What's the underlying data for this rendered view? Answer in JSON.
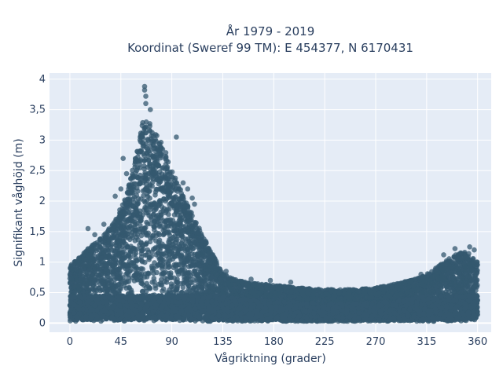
{
  "chart_data": {
    "type": "scatter",
    "title_line1": "År 1979 - 2019",
    "title_line2": "Koordinat (Sweref 99 TM): E 454377, N 6170431",
    "xlabel": "Vågriktning (grader)",
    "ylabel": "Signifikant våghöjd (m)",
    "xlim": [
      -18,
      372
    ],
    "ylim": [
      -0.15,
      4.1
    ],
    "xticks": [
      0,
      45,
      90,
      135,
      180,
      225,
      270,
      315,
      360
    ],
    "xtick_labels": [
      "0",
      "45",
      "90",
      "135",
      "180",
      "225",
      "270",
      "315",
      "360"
    ],
    "yticks": [
      0,
      0.5,
      1,
      1.5,
      2,
      2.5,
      3,
      3.5,
      4
    ],
    "ytick_labels": [
      "0",
      "0,5",
      "1",
      "1,5",
      "2",
      "2,5",
      "3",
      "3,5",
      "4"
    ],
    "marker_color": "#34586f",
    "plot_background": "#e5ecf6",
    "grid": true,
    "envelope": {
      "x": [
        0,
        10,
        20,
        30,
        40,
        50,
        55,
        60,
        65,
        70,
        75,
        80,
        85,
        90,
        100,
        110,
        120,
        130,
        135,
        145,
        160,
        180,
        200,
        225,
        250,
        270,
        290,
        310,
        320,
        330,
        340,
        350,
        360
      ],
      "y_max": [
        0.95,
        1.1,
        1.3,
        1.45,
        1.7,
        2.1,
        2.5,
        2.9,
        3.35,
        3.3,
        3.15,
        3.0,
        2.8,
        2.5,
        2.1,
        1.7,
        1.35,
        1.0,
        0.82,
        0.72,
        0.66,
        0.62,
        0.58,
        0.55,
        0.55,
        0.58,
        0.65,
        0.75,
        0.85,
        1.0,
        1.12,
        1.18,
        1.0
      ]
    },
    "outliers": [
      {
        "x": 66,
        "y": 3.88
      },
      {
        "x": 66,
        "y": 3.82
      },
      {
        "x": 67,
        "y": 3.72
      },
      {
        "x": 67,
        "y": 3.6
      },
      {
        "x": 71,
        "y": 3.5
      },
      {
        "x": 94,
        "y": 3.05
      },
      {
        "x": 100,
        "y": 2.3
      },
      {
        "x": 104,
        "y": 2.2
      },
      {
        "x": 108,
        "y": 2.05
      },
      {
        "x": 110,
        "y": 1.95
      },
      {
        "x": 47,
        "y": 2.7
      },
      {
        "x": 50,
        "y": 2.45
      },
      {
        "x": 45,
        "y": 2.2
      },
      {
        "x": 40,
        "y": 2.08
      },
      {
        "x": 16,
        "y": 1.55
      },
      {
        "x": 22,
        "y": 1.45
      },
      {
        "x": 30,
        "y": 1.62
      },
      {
        "x": 138,
        "y": 0.85
      },
      {
        "x": 160,
        "y": 0.72
      },
      {
        "x": 177,
        "y": 0.7
      },
      {
        "x": 195,
        "y": 0.67
      },
      {
        "x": 310,
        "y": 0.8
      },
      {
        "x": 323,
        "y": 0.9
      },
      {
        "x": 330,
        "y": 1.12
      },
      {
        "x": 340,
        "y": 1.22
      },
      {
        "x": 353,
        "y": 1.25
      },
      {
        "x": 357,
        "y": 1.2
      },
      {
        "x": 345,
        "y": 1.15
      }
    ]
  }
}
